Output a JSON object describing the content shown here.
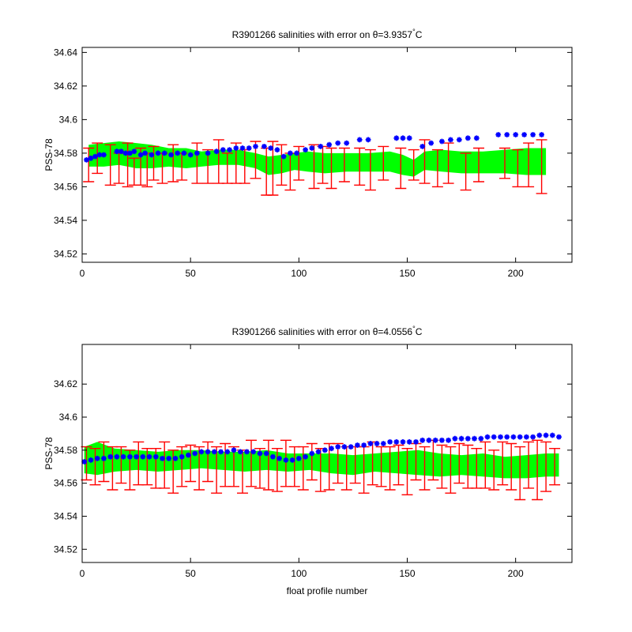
{
  "chart_data": [
    {
      "type": "scatter",
      "title": "R3901266 salinities with error on θ=3.9357°C",
      "title_parts": {
        "prefix": "R3901266 salinities with error on θ=3.9357",
        "deg": "°",
        "suffix": "C"
      },
      "xlabel": "",
      "ylabel": "PSS-78",
      "xlim": [
        0,
        226
      ],
      "ylim": [
        34.515,
        34.643
      ],
      "xticks": [
        0,
        50,
        100,
        150,
        200
      ],
      "yticks": [
        34.52,
        34.54,
        34.56,
        34.58,
        34.6,
        34.62,
        34.64
      ],
      "ytick_labels": [
        "34.52",
        "34.54",
        "34.56",
        "34.58",
        "34.6",
        "34.62",
        "34.64"
      ],
      "grid": false,
      "band_color": "#00ff00",
      "err_color": "#ff0000",
      "marker_color": "#0000ff",
      "band": {
        "x": [
          3,
          10,
          17,
          25,
          32,
          40,
          48,
          55,
          63,
          72,
          80,
          86,
          92,
          98,
          104,
          112,
          122,
          132,
          142,
          148,
          153,
          158,
          166,
          175,
          185,
          195,
          205,
          214
        ],
        "lower": [
          34.572,
          34.572,
          34.573,
          34.571,
          34.571,
          34.572,
          34.571,
          34.572,
          34.573,
          34.573,
          34.571,
          34.567,
          34.568,
          34.57,
          34.569,
          34.568,
          34.569,
          34.569,
          34.569,
          34.567,
          34.566,
          34.57,
          34.569,
          34.568,
          34.568,
          34.568,
          34.567,
          34.567
        ],
        "upper": [
          34.585,
          34.586,
          34.587,
          34.586,
          34.585,
          34.583,
          34.583,
          34.581,
          34.582,
          34.582,
          34.58,
          34.578,
          34.579,
          34.58,
          34.581,
          34.58,
          34.58,
          34.58,
          34.581,
          34.579,
          34.576,
          34.581,
          34.582,
          34.581,
          34.581,
          34.582,
          34.583,
          34.583
        ]
      },
      "errorbars": {
        "x": [
          3,
          7,
          13,
          17,
          21,
          24,
          27,
          30,
          33,
          37,
          42,
          46,
          53,
          58,
          63,
          67,
          71,
          75,
          80,
          85,
          88,
          92,
          96,
          100,
          107,
          111,
          115,
          121,
          128,
          133,
          139,
          147,
          153,
          158,
          164,
          169,
          177,
          183,
          195,
          201,
          206,
          212
        ],
        "y": [
          34.573,
          34.577,
          34.573,
          34.571,
          34.573,
          34.569,
          34.572,
          34.57,
          34.574,
          34.571,
          34.574,
          34.572,
          34.574,
          34.572,
          34.575,
          34.571,
          34.574,
          34.572,
          34.576,
          34.569,
          34.571,
          34.573,
          34.569,
          34.574,
          34.572,
          34.573,
          34.571,
          34.573,
          34.572,
          34.57,
          34.574,
          34.571,
          34.573,
          34.575,
          34.571,
          34.574,
          34.569,
          34.573,
          34.574,
          34.571,
          34.573,
          34.572
        ],
        "err": [
          0.01,
          0.009,
          0.012,
          0.009,
          0.013,
          0.008,
          0.011,
          0.01,
          0.01,
          0.009,
          0.011,
          0.008,
          0.012,
          0.01,
          0.013,
          0.009,
          0.012,
          0.01,
          0.011,
          0.014,
          0.016,
          0.012,
          0.011,
          0.01,
          0.013,
          0.011,
          0.012,
          0.01,
          0.011,
          0.012,
          0.01,
          0.012,
          0.009,
          0.013,
          0.011,
          0.012,
          0.011,
          0.01,
          0.009,
          0.011,
          0.013,
          0.016
        ]
      },
      "points": {
        "x": [
          2,
          4,
          6,
          8,
          10,
          16,
          18,
          20,
          22,
          24,
          27,
          29,
          32,
          35,
          38,
          41,
          44,
          47,
          50,
          53,
          58,
          62,
          65,
          68,
          71,
          74,
          77,
          80,
          84,
          87,
          90,
          93,
          96,
          99,
          103,
          106,
          110,
          114,
          118,
          122,
          128,
          132,
          145,
          148,
          151,
          157,
          161,
          166,
          170,
          174,
          178,
          182,
          192,
          196,
          200,
          204,
          208,
          212
        ],
        "y": [
          34.576,
          34.577,
          34.578,
          34.579,
          34.579,
          34.581,
          34.581,
          34.58,
          34.58,
          34.581,
          34.579,
          34.58,
          34.579,
          34.58,
          34.58,
          34.579,
          34.58,
          34.58,
          34.579,
          34.58,
          34.58,
          34.581,
          34.582,
          34.582,
          34.583,
          34.583,
          34.583,
          34.584,
          34.584,
          34.583,
          34.582,
          34.578,
          34.58,
          34.58,
          34.582,
          34.583,
          34.584,
          34.585,
          34.586,
          34.586,
          34.588,
          34.588,
          34.589,
          34.589,
          34.589,
          34.584,
          34.586,
          34.587,
          34.588,
          34.588,
          34.589,
          34.589,
          34.591,
          34.591,
          34.591,
          34.591,
          34.591,
          34.591
        ]
      }
    },
    {
      "type": "scatter",
      "title": "R3901266 salinities with error on θ=4.0556°C",
      "title_parts": {
        "prefix": "R3901266 salinities with error on θ=4.0556",
        "deg": "°",
        "suffix": "C"
      },
      "xlabel": "float profile number",
      "ylabel": "PSS-78",
      "xlim": [
        0,
        226
      ],
      "ylim": [
        34.512,
        34.644
      ],
      "xticks": [
        0,
        50,
        100,
        150,
        200
      ],
      "yticks": [
        34.52,
        34.54,
        34.56,
        34.58,
        34.6,
        34.62
      ],
      "ytick_labels": [
        "34.52",
        "34.54",
        "34.56",
        "34.58",
        "34.6",
        "34.62"
      ],
      "grid": false,
      "band_color": "#00ff00",
      "err_color": "#ff0000",
      "marker_color": "#0000ff",
      "band": {
        "x": [
          1,
          7,
          15,
          25,
          35,
          45,
          55,
          65,
          75,
          85,
          95,
          105,
          115,
          125,
          135,
          145,
          155,
          165,
          175,
          185,
          195,
          205,
          214,
          220
        ],
        "lower": [
          34.566,
          34.565,
          34.567,
          34.568,
          34.567,
          34.568,
          34.569,
          34.568,
          34.567,
          34.568,
          34.567,
          34.568,
          34.566,
          34.565,
          34.567,
          34.566,
          34.565,
          34.564,
          34.565,
          34.564,
          34.563,
          34.563,
          34.564,
          34.564
        ],
        "upper": [
          34.582,
          34.585,
          34.581,
          34.58,
          34.579,
          34.58,
          34.58,
          34.579,
          34.579,
          34.58,
          34.578,
          34.578,
          34.578,
          34.577,
          34.578,
          34.579,
          34.58,
          34.578,
          34.577,
          34.578,
          34.576,
          34.577,
          34.578,
          34.578
        ]
      },
      "errorbars": {
        "x": [
          2,
          6,
          10,
          14,
          18,
          22,
          26,
          30,
          34,
          38,
          42,
          46,
          50,
          54,
          58,
          62,
          66,
          70,
          74,
          78,
          82,
          86,
          90,
          94,
          98,
          102,
          106,
          110,
          114,
          118,
          122,
          126,
          130,
          134,
          138,
          142,
          146,
          150,
          154,
          158,
          162,
          166,
          170,
          174,
          178,
          182,
          186,
          190,
          194,
          198,
          202,
          206,
          210,
          214,
          218
        ],
        "y": [
          34.572,
          34.57,
          34.573,
          34.569,
          34.571,
          34.568,
          34.572,
          34.57,
          34.569,
          34.571,
          34.567,
          34.57,
          34.572,
          34.569,
          34.573,
          34.568,
          34.571,
          34.57,
          34.567,
          34.572,
          34.569,
          34.571,
          34.568,
          34.572,
          34.57,
          34.569,
          34.573,
          34.568,
          34.57,
          34.572,
          34.569,
          34.571,
          34.568,
          34.572,
          34.57,
          34.569,
          34.571,
          34.567,
          34.573,
          34.569,
          34.574,
          34.57,
          34.568,
          34.572,
          34.57,
          34.569,
          34.571,
          34.568,
          34.572,
          34.57,
          34.566,
          34.571,
          34.568,
          34.57,
          34.57
        ],
        "err": [
          0.01,
          0.011,
          0.012,
          0.013,
          0.011,
          0.012,
          0.013,
          0.011,
          0.012,
          0.014,
          0.013,
          0.012,
          0.011,
          0.013,
          0.012,
          0.014,
          0.013,
          0.012,
          0.013,
          0.014,
          0.012,
          0.015,
          0.013,
          0.014,
          0.012,
          0.013,
          0.011,
          0.013,
          0.014,
          0.012,
          0.013,
          0.011,
          0.014,
          0.013,
          0.012,
          0.013,
          0.012,
          0.014,
          0.011,
          0.013,
          0.012,
          0.013,
          0.014,
          0.012,
          0.013,
          0.012,
          0.014,
          0.012,
          0.013,
          0.014,
          0.016,
          0.014,
          0.018,
          0.015,
          0.011
        ]
      },
      "points": {
        "x": [
          1,
          4,
          7,
          10,
          13,
          16,
          19,
          22,
          25,
          28,
          31,
          34,
          37,
          40,
          43,
          46,
          49,
          52,
          55,
          58,
          61,
          64,
          67,
          70,
          73,
          76,
          79,
          82,
          85,
          88,
          91,
          94,
          97,
          100,
          103,
          106,
          109,
          112,
          115,
          118,
          121,
          124,
          127,
          130,
          133,
          136,
          139,
          142,
          145,
          148,
          151,
          154,
          157,
          160,
          163,
          166,
          169,
          172,
          175,
          178,
          181,
          184,
          187,
          190,
          193,
          196,
          199,
          202,
          205,
          208,
          211,
          214,
          217,
          220
        ],
        "y": [
          34.573,
          34.574,
          34.575,
          34.575,
          34.576,
          34.576,
          34.576,
          34.576,
          34.576,
          34.576,
          34.576,
          34.576,
          34.575,
          34.575,
          34.575,
          34.576,
          34.577,
          34.578,
          34.579,
          34.579,
          34.579,
          34.579,
          34.579,
          34.58,
          34.579,
          34.579,
          34.579,
          34.578,
          34.578,
          34.576,
          34.575,
          34.574,
          34.574,
          34.575,
          34.576,
          34.578,
          34.579,
          34.58,
          34.581,
          34.582,
          34.582,
          34.582,
          34.583,
          34.583,
          34.584,
          34.584,
          34.584,
          34.585,
          34.585,
          34.585,
          34.585,
          34.585,
          34.586,
          34.586,
          34.586,
          34.586,
          34.586,
          34.587,
          34.587,
          34.587,
          34.587,
          34.587,
          34.588,
          34.588,
          34.588,
          34.588,
          34.588,
          34.588,
          34.588,
          34.588,
          34.589,
          34.589,
          34.589,
          34.588
        ]
      }
    }
  ]
}
